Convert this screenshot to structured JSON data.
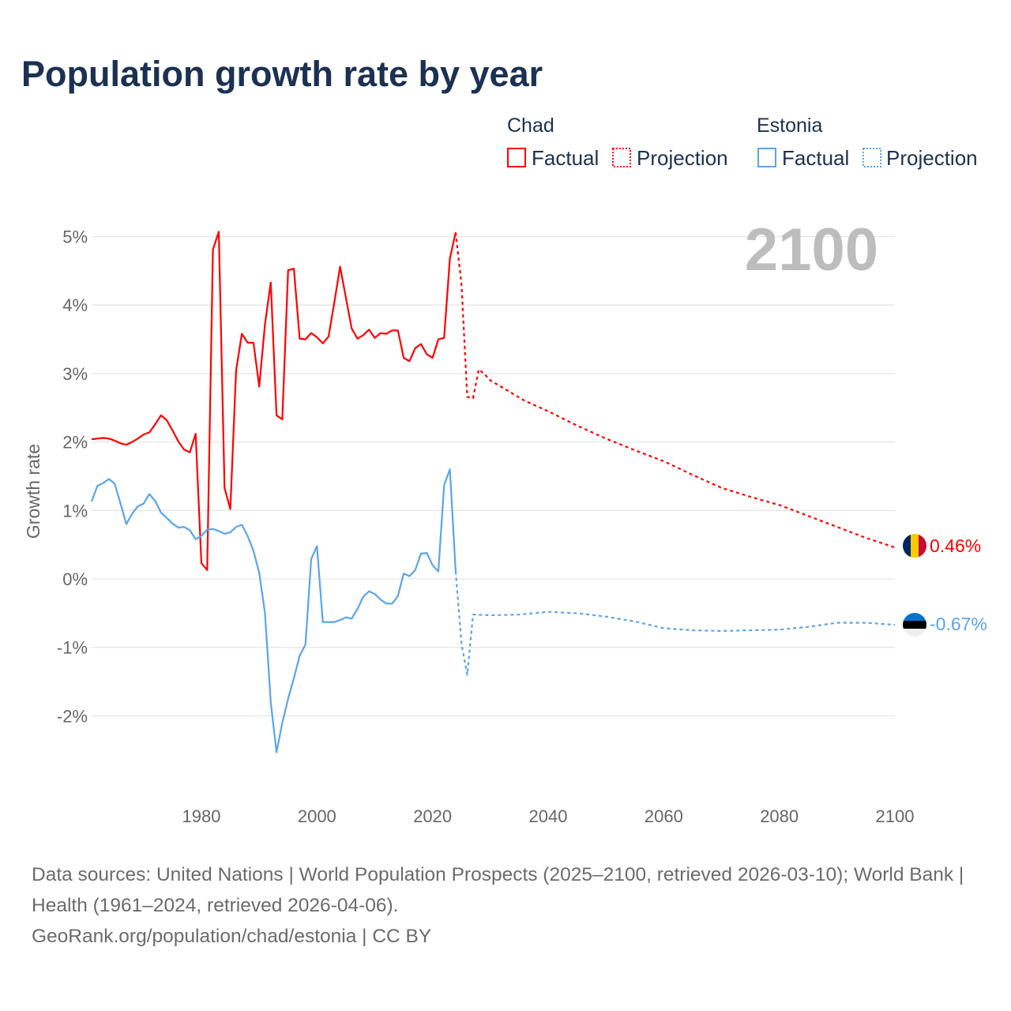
{
  "title": "Population growth rate by year",
  "legend": {
    "groups": [
      {
        "country": "Chad",
        "color": "#ff0000",
        "items": [
          "Factual",
          "Projection"
        ]
      },
      {
        "country": "Estonia",
        "color": "#5ba4ec",
        "items": [
          "Factual",
          "Projection"
        ]
      }
    ]
  },
  "year_indicator": "2100",
  "footer": {
    "sources": "Data sources: United Nations | World Population Prospects (2025–2100, retrieved 2026-03-10); World Bank | Health (1961–2024, retrieved 2026-04-06).",
    "link": "GeoRank.org/population/chad/estonia | CC BY"
  },
  "chart_data": {
    "type": "line",
    "title": "Population growth rate by year",
    "xlabel": "",
    "ylabel": "Growth rate",
    "xlim": [
      1961,
      2100
    ],
    "ylim": [
      -3,
      5.4
    ],
    "x_ticks": [
      1980,
      2000,
      2020,
      2040,
      2060,
      2080,
      2100
    ],
    "y_ticks": [
      5,
      4,
      3,
      2,
      1,
      0,
      -1,
      -2
    ],
    "y_tick_labels": [
      "5%",
      "4%",
      "3%",
      "2%",
      "1%",
      "0%",
      "-1%",
      "-2%"
    ],
    "grid": true,
    "legend_position": "top-right",
    "series": [
      {
        "name": "Chad",
        "kind": "factual",
        "color": "#ff0000",
        "x_start": 1961,
        "values": [
          2.04,
          2.05,
          2.06,
          2.05,
          2.02,
          1.98,
          1.96,
          2.0,
          2.05,
          2.11,
          2.14,
          2.26,
          2.39,
          2.32,
          2.17,
          2.01,
          1.89,
          1.85,
          2.12,
          0.23,
          0.13,
          4.81,
          5.07,
          1.33,
          1.02,
          3.04,
          3.58,
          3.45,
          3.45,
          2.81,
          3.72,
          4.33,
          2.39,
          2.33,
          4.51,
          4.53,
          3.51,
          3.5,
          3.59,
          3.53,
          3.44,
          3.54,
          4.04,
          4.56,
          4.11,
          3.66,
          3.51,
          3.56,
          3.64,
          3.52,
          3.59,
          3.58,
          3.63,
          3.63,
          3.23,
          3.18,
          3.37,
          3.43,
          3.28,
          3.23,
          3.5,
          3.52,
          4.68,
          5.06
        ]
      },
      {
        "name": "Chad",
        "kind": "projection",
        "color": "#ff0000",
        "x": [
          2024,
          2025,
          2026,
          2027,
          2028,
          2029,
          2030,
          2033,
          2036,
          2040,
          2045,
          2050,
          2055,
          2060,
          2065,
          2070,
          2075,
          2080,
          2085,
          2090,
          2095,
          2100
        ],
        "values": [
          5.06,
          4.3,
          2.66,
          2.64,
          3.06,
          2.99,
          2.9,
          2.75,
          2.6,
          2.45,
          2.24,
          2.05,
          1.88,
          1.72,
          1.52,
          1.33,
          1.2,
          1.08,
          0.92,
          0.76,
          0.6,
          0.46
        ]
      },
      {
        "name": "Estonia",
        "kind": "factual",
        "color": "#5ba4ec",
        "x_start": 1961,
        "values": [
          1.13,
          1.36,
          1.4,
          1.46,
          1.39,
          1.1,
          0.8,
          0.95,
          1.06,
          1.1,
          1.24,
          1.14,
          0.97,
          0.89,
          0.81,
          0.75,
          0.76,
          0.71,
          0.58,
          0.63,
          0.72,
          0.73,
          0.7,
          0.66,
          0.68,
          0.76,
          0.79,
          0.63,
          0.41,
          0.09,
          -0.5,
          -1.8,
          -2.53,
          -2.1,
          -1.75,
          -1.45,
          -1.12,
          -0.96,
          0.29,
          0.48,
          -0.63,
          -0.63,
          -0.63,
          -0.6,
          -0.56,
          -0.58,
          -0.44,
          -0.26,
          -0.18,
          -0.22,
          -0.3,
          -0.36,
          -0.36,
          -0.25,
          0.08,
          0.04,
          0.13,
          0.37,
          0.38,
          0.2,
          0.11,
          1.37,
          1.6,
          0.11
        ]
      },
      {
        "name": "Estonia",
        "kind": "projection",
        "color": "#5ba4ec",
        "x": [
          2024,
          2025,
          2026,
          2027,
          2030,
          2035,
          2040,
          2045,
          2050,
          2055,
          2060,
          2065,
          2070,
          2075,
          2080,
          2085,
          2090,
          2095,
          2100
        ],
        "values": [
          0.11,
          -0.95,
          -1.4,
          -0.52,
          -0.53,
          -0.52,
          -0.48,
          -0.5,
          -0.55,
          -0.62,
          -0.72,
          -0.75,
          -0.76,
          -0.75,
          -0.74,
          -0.7,
          -0.64,
          -0.64,
          -0.67
        ]
      }
    ],
    "end_labels": [
      {
        "country": "Chad",
        "text": "0.46%",
        "color": "#ff0000"
      },
      {
        "country": "Estonia",
        "text": "-0.67%",
        "color": "#5ba4ec"
      }
    ]
  }
}
